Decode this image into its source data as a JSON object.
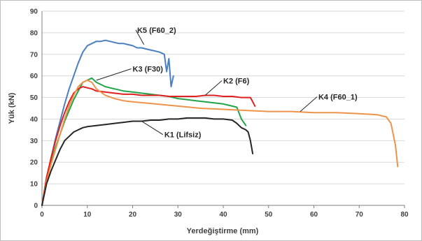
{
  "chart_data": {
    "type": "line",
    "title": "",
    "xlabel": "Yerdeğiştirme (mm)",
    "ylabel": "Yük (kN)",
    "xlim": [
      0,
      80
    ],
    "ylim": [
      0,
      90
    ],
    "xticks": [
      0,
      10,
      20,
      30,
      40,
      50,
      60,
      70,
      80
    ],
    "yticks": [
      0,
      10,
      20,
      30,
      40,
      50,
      60,
      70,
      80,
      90
    ],
    "grid": "horizontal",
    "legend": "none",
    "series": [
      {
        "name": "K5 (F60_2)",
        "color": "#4a7fc1",
        "x": [
          0,
          1,
          2,
          3,
          4,
          5,
          6,
          7,
          8,
          9,
          10,
          11,
          12,
          13,
          14,
          15,
          16,
          17,
          18,
          19,
          20,
          21,
          22,
          23,
          24,
          25,
          26,
          27,
          27.5,
          28,
          28.5,
          29
        ],
        "y": [
          0,
          12,
          22,
          31,
          39,
          47,
          54,
          60,
          66,
          71,
          74,
          75,
          76,
          76,
          76.5,
          76,
          75.5,
          75,
          75,
          74.5,
          74,
          73,
          73,
          72.5,
          72,
          71.5,
          71,
          70,
          62,
          68,
          55,
          60
        ]
      },
      {
        "name": "K3 (F30)",
        "color": "#22a34a",
        "x": [
          0,
          1,
          2,
          3,
          4,
          5,
          6,
          7,
          8,
          9,
          10,
          11,
          12,
          13,
          14,
          15,
          16,
          18,
          20,
          22,
          24,
          26,
          28,
          30,
          32,
          34,
          36,
          38,
          40,
          41,
          42,
          43,
          44,
          45
        ],
        "y": [
          0,
          12,
          20,
          27,
          33,
          39,
          44,
          49,
          53,
          57,
          58,
          59,
          57,
          56,
          55,
          54.5,
          54,
          53,
          52.5,
          52,
          51.5,
          51,
          50.5,
          49.5,
          49,
          48.5,
          48,
          47.5,
          47,
          46.5,
          46,
          45.5,
          40,
          37
        ]
      },
      {
        "name": "K2 (F6)",
        "color": "#e02020",
        "x": [
          0,
          1,
          2,
          3,
          4,
          5,
          6,
          7,
          8,
          9,
          10,
          11,
          12,
          14,
          16,
          18,
          20,
          22,
          24,
          26,
          28,
          30,
          32,
          34,
          36,
          38,
          40,
          42,
          44,
          46,
          46.5,
          47
        ],
        "y": [
          0,
          13,
          22,
          30,
          37,
          43,
          48,
          52,
          54,
          55,
          54.5,
          54,
          53,
          52.5,
          52,
          51.5,
          51.5,
          51,
          51,
          51,
          50.5,
          50.5,
          50.5,
          50.5,
          51,
          51,
          50.5,
          50.5,
          50,
          50,
          48,
          46
        ]
      },
      {
        "name": "K4 (F60_1)",
        "color": "#f0934a",
        "x": [
          0,
          1,
          2,
          3,
          4,
          5,
          6,
          7,
          8,
          9,
          10,
          11,
          12,
          14,
          16,
          18,
          20,
          25,
          30,
          35,
          40,
          45,
          50,
          55,
          60,
          65,
          70,
          74,
          76,
          77,
          78,
          78.5
        ],
        "y": [
          0,
          11,
          19,
          26,
          33,
          40,
          46,
          51,
          55,
          57,
          58,
          57,
          54,
          51,
          49.5,
          48.5,
          48,
          47,
          46,
          45,
          44.5,
          44,
          43.5,
          43.5,
          43,
          43,
          42.5,
          42,
          41,
          38,
          28,
          18
        ]
      },
      {
        "name": "K1 (Lifsiz)",
        "color": "#262626",
        "x": [
          0,
          1,
          2,
          3,
          4,
          5,
          6,
          7,
          8,
          9,
          10,
          12,
          14,
          16,
          18,
          20,
          22,
          24,
          26,
          28,
          30,
          32,
          34,
          36,
          38,
          40,
          42,
          43,
          44,
          45,
          45.5,
          46,
          46.5
        ],
        "y": [
          0,
          10,
          16,
          21,
          26,
          30,
          32,
          34,
          35,
          36,
          36.5,
          37,
          37.5,
          38,
          38.5,
          39,
          39,
          39.5,
          39.5,
          40,
          40,
          40.5,
          40.5,
          40.5,
          40,
          40,
          39.5,
          38,
          36,
          35,
          34,
          30,
          24
        ]
      }
    ],
    "annotations": [
      {
        "text": "K5 (F60_2)",
        "x": 21,
        "y": 80,
        "target_x": 22.5,
        "target_y": 74.5
      },
      {
        "text": "K3 (F30)",
        "x": 20,
        "y": 62,
        "target_x": 12,
        "target_y": 58
      },
      {
        "text": "K2 (F6)",
        "x": 40,
        "y": 56.5,
        "target_x": 36,
        "target_y": 51
      },
      {
        "text": "K4 (F60_1)",
        "x": 61,
        "y": 49,
        "target_x": 57,
        "target_y": 43.5
      },
      {
        "text": "K1 (Lifsiz)",
        "x": 27,
        "y": 31.5,
        "target_x": 22,
        "target_y": 39
      }
    ]
  }
}
